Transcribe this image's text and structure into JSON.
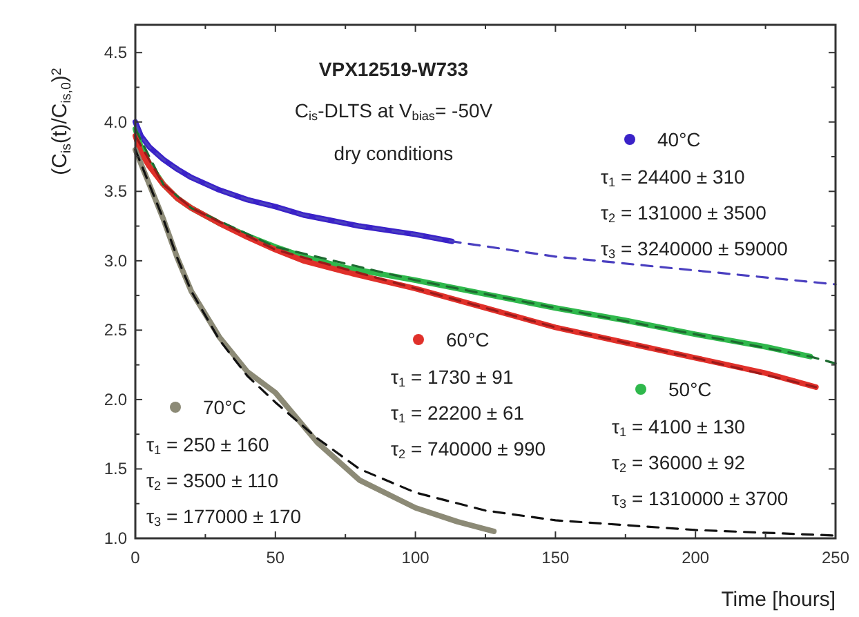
{
  "chart_data": {
    "type": "line",
    "title": "VPX12519-W733",
    "subtitle": "C$_{is}$-DLTS at V$_{bias}$= -50V\ndry conditions",
    "xlabel": "Time [hours]",
    "ylabel": "(C$_{is}$(t)/C$_{is,0}$)$^{2}$",
    "xlim": [
      0,
      250
    ],
    "ylim": [
      1,
      4.7
    ],
    "xticks": [
      0,
      {
        "value": 25,
        "label": null
      },
      50,
      {
        "value": 75,
        "label": null
      },
      100,
      {
        "value": 125,
        "label": null
      },
      150,
      {
        "value": 175,
        "label": null
      },
      200,
      {
        "value": 225,
        "label": null
      },
      250
    ],
    "yticks": [
      {
        "value": 1,
        "label": "1.0"
      },
      {
        "value": 1.25,
        "label": null
      },
      {
        "value": 1.5,
        "label": "1.5"
      },
      {
        "value": 1.75,
        "label": null
      },
      {
        "value": 2,
        "label": "2.0"
      },
      {
        "value": 2.25,
        "label": null
      },
      {
        "value": 2.5,
        "label": "2.5"
      },
      {
        "value": 2.75,
        "label": null
      },
      {
        "value": 3,
        "label": "3.0"
      },
      {
        "value": 3.25,
        "label": null
      },
      {
        "value": 3.5,
        "label": "3.5"
      },
      {
        "value": 3.75,
        "label": null
      },
      {
        "value": 4,
        "label": "4.0"
      },
      {
        "value": 4.25,
        "label": null
      },
      {
        "value": 4.5,
        "label": "4.5"
      }
    ],
    "grid": false,
    "legend": "top left",
    "marker": "none",
    "series": [
      {
        "name": "40°C",
        "color": "#3a22c8",
        "x": [
          0,
          2,
          5,
          10,
          15,
          20,
          30,
          40,
          50,
          60,
          70,
          80,
          90,
          100,
          113
        ],
        "values": [
          4.0,
          3.9,
          3.82,
          3.73,
          3.66,
          3.6,
          3.51,
          3.44,
          3.39,
          3.33,
          3.29,
          3.25,
          3.22,
          3.19,
          3.14
        ]
      },
      {
        "name": "50°C",
        "color": "#2fb84c",
        "x": [
          0,
          2,
          5,
          10,
          15,
          20,
          30,
          40,
          50,
          60,
          75,
          100,
          125,
          150,
          175,
          200,
          225,
          241
        ],
        "values": [
          3.95,
          3.82,
          3.7,
          3.55,
          3.45,
          3.38,
          3.27,
          3.18,
          3.1,
          3.03,
          2.95,
          2.86,
          2.76,
          2.66,
          2.57,
          2.47,
          2.38,
          2.31
        ]
      },
      {
        "name": "60°C",
        "color": "#e0302a",
        "x": [
          0,
          2,
          5,
          10,
          15,
          20,
          30,
          40,
          50,
          60,
          75,
          100,
          125,
          150,
          175,
          200,
          225,
          243
        ],
        "values": [
          3.9,
          3.78,
          3.68,
          3.55,
          3.45,
          3.38,
          3.27,
          3.17,
          3.08,
          3.0,
          2.92,
          2.8,
          2.66,
          2.52,
          2.41,
          2.3,
          2.19,
          2.09
        ]
      },
      {
        "name": "70°C",
        "color": "#8c8a76",
        "x": [
          0,
          3,
          6,
          10,
          15,
          20,
          30,
          40,
          50,
          65,
          80,
          100,
          115,
          128
        ],
        "values": [
          3.8,
          3.65,
          3.5,
          3.3,
          3.02,
          2.78,
          2.45,
          2.2,
          2.05,
          1.69,
          1.42,
          1.22,
          1.12,
          1.05
        ]
      },
      {
        "color": "#4a3fc0",
        "line_style": "dashed",
        "x": [
          0,
          2,
          5,
          10,
          15,
          20,
          30,
          40,
          50,
          60,
          70,
          80,
          90,
          100,
          113,
          150,
          200,
          250
        ],
        "values": [
          4.0,
          3.9,
          3.82,
          3.73,
          3.66,
          3.6,
          3.51,
          3.44,
          3.39,
          3.33,
          3.29,
          3.25,
          3.22,
          3.19,
          3.14,
          3.03,
          2.93,
          2.83
        ]
      },
      {
        "color": "#1d6a30",
        "line_style": "dashed",
        "x": [
          0,
          10,
          20,
          50,
          100,
          150,
          200,
          241,
          250
        ],
        "values": [
          3.95,
          3.55,
          3.38,
          3.1,
          2.86,
          2.66,
          2.47,
          2.31,
          2.26
        ]
      },
      {
        "color": "#9a1a1a",
        "line_style": "dashed",
        "x": [
          0,
          10,
          20,
          50,
          100,
          150,
          200,
          243
        ],
        "values": [
          3.9,
          3.55,
          3.38,
          3.08,
          2.8,
          2.52,
          2.3,
          2.09
        ]
      },
      {
        "color": "#111111",
        "line_style": "dashed",
        "x": [
          0,
          3,
          6,
          10,
          15,
          20,
          30,
          40,
          50,
          65,
          80,
          100,
          125,
          150,
          200,
          250
        ],
        "values": [
          3.8,
          3.65,
          3.5,
          3.3,
          3.02,
          2.78,
          2.43,
          2.17,
          1.98,
          1.72,
          1.5,
          1.33,
          1.2,
          1.13,
          1.06,
          1.02
        ]
      }
    ],
    "annotations": [
      "τ$_{1}$ = 24400 ± 310",
      "τ$_{2}$ = 131000 ± 3500",
      "τ$_{3}$ = 3240000 ± 59000",
      "τ$_{1}$ = 4100 ± 130",
      "τ$_{2}$ = 36000 ± 92",
      "τ$_{3}$ = 1310000 ± 3700",
      "τ$_{1}$ = 1730 ± 91",
      "τ$_{1}$ = 22200 ± 61",
      "τ$_{2}$ = 740000 ± 990",
      "τ$_{1}$ = 250 ± 160",
      "τ$_{2}$ = 3500 ± 110",
      "τ$_{3}$ = 177000 ± 170"
    ]
  }
}
